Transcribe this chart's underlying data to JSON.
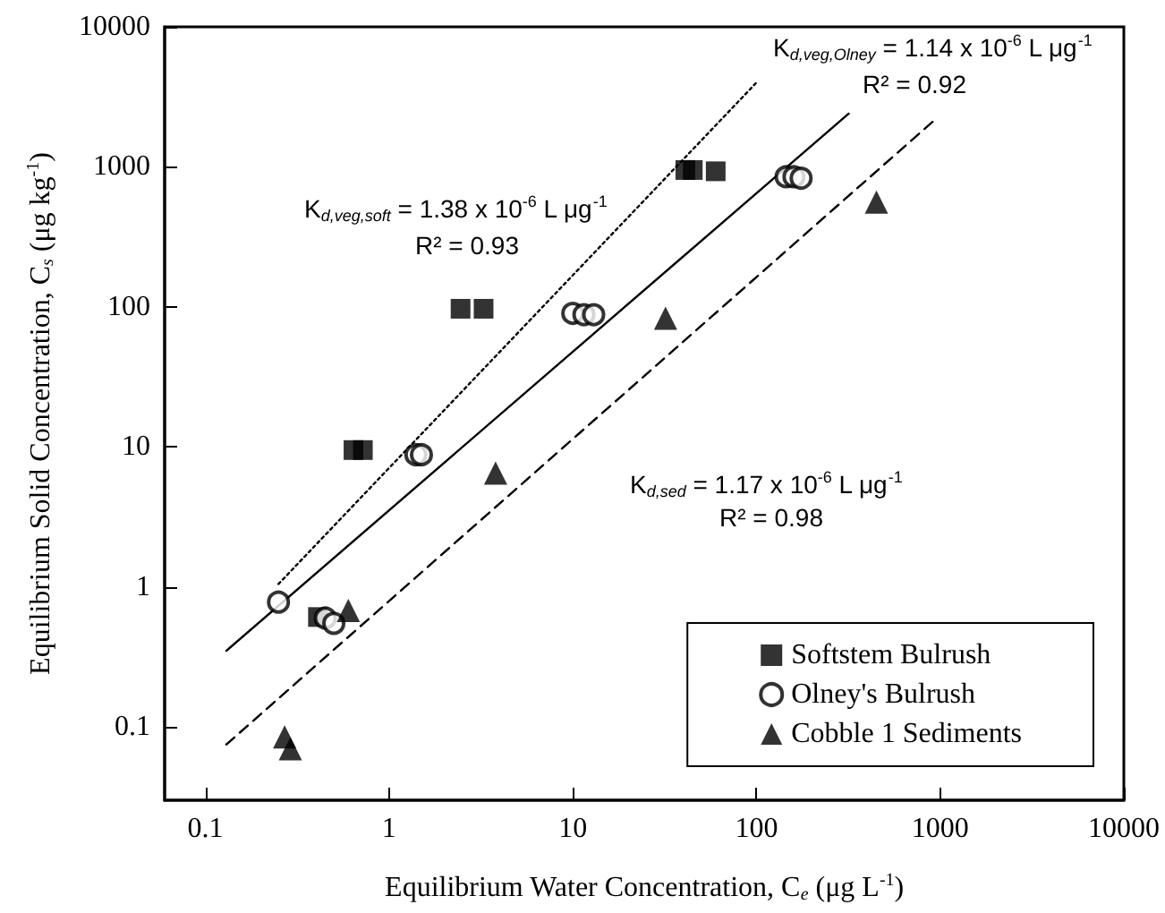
{
  "chart_data": {
    "type": "scatter",
    "xlabel": "Equilibrium Water Concentration, C$_{e}$ (μg L$^{-1}$)",
    "ylabel": "Equilibrium Solid Concentration, C$_{s}$ (μg kg$^{-1}$)",
    "log": "xy",
    "xlim": [
      0.06,
      10000
    ],
    "ylim": [
      0.03,
      10000
    ],
    "xticks": [
      0.1,
      1,
      10,
      100,
      1000,
      10000
    ],
    "yticks": [
      0.1,
      1,
      10,
      100,
      1000,
      10000
    ],
    "grid": false,
    "legend": "bottom right",
    "series": [
      {
        "name": "Softstem Bulrush",
        "color": "#000000",
        "marker": "square",
        "x": [
          0.41,
          0.64,
          0.72,
          2.45,
          3.27,
          41,
          45,
          60
        ],
        "values": [
          0.61,
          9.5,
          9.5,
          97,
          97,
          950,
          950,
          930
        ]
      },
      {
        "name": "Olney's Bulrush",
        "color": "#000000",
        "marker": "circle",
        "x": [
          0.25,
          0.45,
          0.5,
          1.4,
          1.5,
          10,
          11.5,
          13,
          145,
          160,
          175
        ],
        "values": [
          0.78,
          0.6,
          0.55,
          8.8,
          8.8,
          90,
          88,
          88,
          850,
          850,
          830
        ]
      },
      {
        "name": "Cobble 1 Sediments",
        "color": "#000000",
        "marker": "triangle",
        "x": [
          0.27,
          0.29,
          0.6,
          3.8,
          32,
          450
        ],
        "values": [
          0.085,
          0.07,
          0.68,
          6.5,
          83,
          560
        ]
      },
      {
        "type": "line",
        "color": "#000000",
        "line_style": "dotted",
        "x": [
          0.25,
          100
        ],
        "values": [
          1.05,
          4000
        ]
      },
      {
        "type": "line",
        "color": "#000000",
        "line_style": "solid",
        "x": [
          0.13,
          318
        ],
        "values": [
          0.35,
          2400
        ]
      },
      {
        "type": "line",
        "color": "#000000",
        "line_style": "dashed",
        "x": [
          0.13,
          910
        ],
        "values": [
          0.075,
          2100
        ]
      }
    ],
    "annotations": [
      "K$_{d,veg,soft}$ = 1.38 x 10$^{-6}$ L μg$^{-1}$",
      "R² = 0.93",
      "K$_{d,veg,Olney}$ = 1.14 x 10$^{-6}$ L μg$^{-1}$",
      "R² = 0.92",
      "K$_{d,sed}$ = 1.17 x 10$^{-6}$ L μg$^{-1}$",
      "R² = 0.98"
    ]
  }
}
